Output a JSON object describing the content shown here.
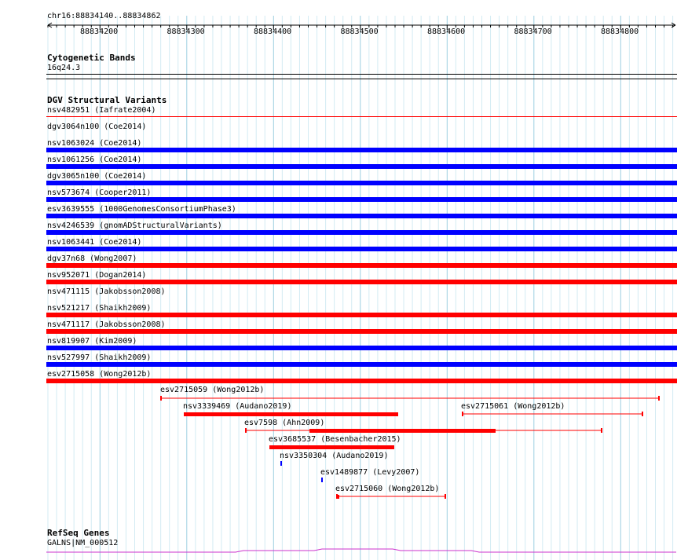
{
  "ruler": {
    "location": "chr16:88834140..88834862",
    "ticks": [
      "88834200",
      "88834300",
      "88834400",
      "88834500",
      "88834600",
      "88834700",
      "88834800"
    ]
  },
  "cytobands": {
    "title": "Cytogenetic Bands",
    "band": "16q24.3"
  },
  "dgv": {
    "title": "DGV Structural Variants",
    "rows": [
      {
        "label": "nsv482951 (Iafrate2004)",
        "color": "#ff0000",
        "style": "thin"
      },
      {
        "label": "dgv3064n100 (Coe2014)",
        "color": "#0000ff",
        "style": "thick"
      },
      {
        "label": "nsv1063024 (Coe2014)",
        "color": "#0000ff",
        "style": "thick"
      },
      {
        "label": "nsv1061256 (Coe2014)",
        "color": "#0000ff",
        "style": "thick"
      },
      {
        "label": "dgv3065n100 (Coe2014)",
        "color": "#0000ff",
        "style": "thick"
      },
      {
        "label": "nsv573674 (Cooper2011)",
        "color": "#0000ff",
        "style": "thick"
      },
      {
        "label": "esv3639555 (1000GenomesConsortiumPhase3)",
        "color": "#0000ff",
        "style": "thick"
      },
      {
        "label": "nsv4246539 (gnomADStructuralVariants)",
        "color": "#0000ff",
        "style": "thick"
      },
      {
        "label": "nsv1063441 (Coe2014)",
        "color": "#ff0000",
        "style": "thick"
      },
      {
        "label": "dgv37n68 (Wong2007)",
        "color": "#ff0000",
        "style": "thick"
      },
      {
        "label": "nsv952071 (Dogan2014)",
        "color": "#ff0000",
        "style": "thin"
      },
      {
        "label": "nsv471115 (Jakobsson2008)",
        "color": "#ff0000",
        "style": "thick"
      },
      {
        "label": "nsv521217 (Shaikh2009)",
        "color": "#ff0000",
        "style": "thick"
      },
      {
        "label": "nsv471117 (Jakobsson2008)",
        "color": "#0000ff",
        "style": "thick"
      },
      {
        "label": "nsv819907 (Kim2009)",
        "color": "#0000ff",
        "style": "thick"
      },
      {
        "label": "nsv527997 (Shaikh2009)",
        "color": "#ff0000",
        "style": "thick"
      },
      {
        "label": "esv2715058 (Wong2012b)",
        "color": "#ff0000",
        "style": "thin"
      }
    ],
    "features": [
      {
        "label": "esv2715059 (Wong2012b)",
        "color": "#ff0000"
      },
      {
        "label": "nsv3339469 (Audano2019)",
        "color": "#ff0000"
      },
      {
        "label": "esv2715061 (Wong2012b)",
        "color": "#ff0000"
      },
      {
        "label": "esv7598 (Ahn2009)",
        "color": "#ff0000"
      },
      {
        "label": "esv3685537 (Besenbacher2015)",
        "color": "#ff0000"
      },
      {
        "label": "nsv3350304 (Audano2019)",
        "color": "#0000ff"
      },
      {
        "label": "esv1489877 (Levy2007)",
        "color": "#0000ff"
      },
      {
        "label": "esv2715060 (Wong2012b)",
        "color": "#ff0000"
      }
    ]
  },
  "refseq": {
    "title": "RefSeq Genes",
    "gene": "GALNS|NM_000512",
    "color": "#cc33cc"
  }
}
